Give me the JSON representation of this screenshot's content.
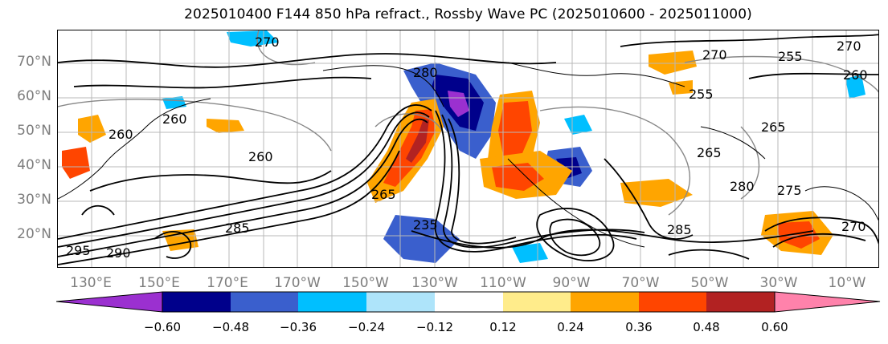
{
  "title": "2025010400 F144 850 hPa refract., Rossby Wave PC (2025010600 - 2025011000)",
  "lat_labels": [
    "70°N",
    "60°N",
    "50°N",
    "40°N",
    "30°N",
    "20°N"
  ],
  "lon_labels": [
    "130°E",
    "150°E",
    "170°E",
    "170°W",
    "150°W",
    "130°W",
    "110°W",
    "90°W",
    "70°W",
    "50°W",
    "30°W",
    "10°W"
  ],
  "contour_labels": [
    "270",
    "280",
    "270",
    "260",
    "265",
    "260",
    "255",
    "265",
    "260",
    "255",
    "260",
    "235",
    "285",
    "290",
    "295",
    "280",
    "270",
    "275",
    "265",
    "285",
    "270"
  ],
  "colorbar": {
    "tick_labels": [
      "−0.60",
      "−0.48",
      "−0.36",
      "−0.24",
      "−0.12",
      "0.12",
      "0.24",
      "0.36",
      "0.48",
      "0.60"
    ],
    "colors": [
      "#9b30d0",
      "#00008b",
      "#3a5fcd",
      "#00bfff",
      "#aee4fa",
      "#ffffff",
      "#ffec8b",
      "#ffa500",
      "#ff4500",
      "#b22222",
      "#ff82ab"
    ]
  }
}
